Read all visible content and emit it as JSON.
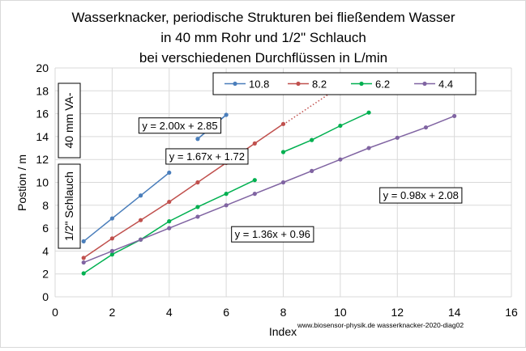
{
  "chart_data": {
    "type": "scatter",
    "title": [
      "Wasserknacker, periodische Strukturen bei  fließendem Wasser",
      "in 40 mm Rohr und 1/2\" Schlauch",
      "bei verschiedenen Durchflüssen in L/min"
    ],
    "xlabel": "Index",
    "ylabel": "Postion / m",
    "xlim": [
      0,
      16
    ],
    "ylim": [
      0,
      20
    ],
    "xticks": [
      "0",
      "2",
      "4",
      "6",
      "8",
      "10",
      "12",
      "14",
      "16"
    ],
    "yticks": [
      "0",
      "2",
      "4",
      "6",
      "8",
      "10",
      "12",
      "14",
      "16",
      "18",
      "20"
    ],
    "grid": true,
    "legend_position": "top-right",
    "series": [
      {
        "name": "10.8",
        "color": "#4a7ebb",
        "segments": [
          [
            [
              1,
              4.85
            ],
            [
              2,
              6.85
            ],
            [
              3,
              8.85
            ],
            [
              4,
              10.85
            ]
          ],
          [
            [
              5,
              13.8
            ],
            [
              6,
              15.9
            ]
          ]
        ],
        "trendline": {
          "x_range": [
            5,
            6
          ],
          "style": "solid"
        }
      },
      {
        "name": "8.2",
        "color": "#c0504d",
        "segments": [
          [
            [
              1,
              3.4
            ],
            [
              2,
              5.1
            ],
            [
              3,
              6.7
            ],
            [
              4,
              8.3
            ],
            [
              5,
              10.0
            ],
            [
              6,
              11.7
            ],
            [
              7,
              13.4
            ],
            [
              8,
              15.1
            ]
          ]
        ],
        "trendline": {
          "x_range": [
            8,
            10.2
          ],
          "style": "dotted"
        }
      },
      {
        "name": "6.2",
        "color": "#00b050",
        "segments": [
          [
            [
              1,
              2.05
            ],
            [
              2,
              3.7
            ],
            [
              3,
              5.0
            ],
            [
              4,
              6.6
            ],
            [
              5,
              7.85
            ],
            [
              6,
              9.0
            ],
            [
              7,
              10.2
            ]
          ],
          [
            [
              8,
              12.65
            ],
            [
              9,
              13.7
            ],
            [
              10,
              14.95
            ],
            [
              11,
              16.1
            ]
          ]
        ]
      },
      {
        "name": "4.4",
        "color": "#8064a2",
        "segments": [
          [
            [
              1,
              3.0
            ],
            [
              2,
              4.0
            ],
            [
              3,
              5.0
            ],
            [
              4,
              6.0
            ],
            [
              5,
              7.0
            ],
            [
              6,
              8.0
            ],
            [
              7,
              9.0
            ],
            [
              8,
              10.0
            ],
            [
              9,
              11.0
            ],
            [
              10,
              12.0
            ],
            [
              11,
              13.0
            ],
            [
              12,
              13.9
            ],
            [
              13,
              14.8
            ],
            [
              14,
              15.8
            ]
          ]
        ]
      }
    ],
    "annotations": [
      {
        "text": "y = 2.00x + 2.85",
        "x": 3.05,
        "y": 15.0
      },
      {
        "text": "y = 1.67x + 1.72",
        "x": 4.0,
        "y": 12.3
      },
      {
        "text": "y = 0.98x + 2.08",
        "x": 11.5,
        "y": 8.9
      },
      {
        "text": "y = 1.36x + 0.96",
        "x": 6.3,
        "y": 5.5
      }
    ],
    "side_labels": [
      "40 mm VA-",
      "1/2\" Schlauch"
    ],
    "credit": "www.biosensor-physik.de wasserknacker-2020-diag02"
  }
}
